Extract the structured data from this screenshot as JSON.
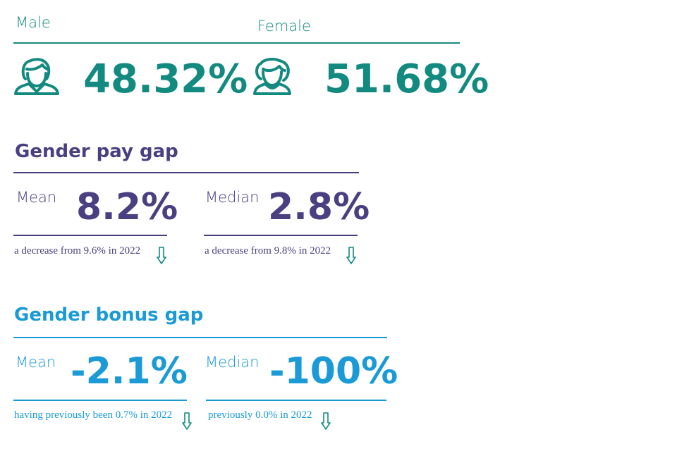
{
  "gender_split": {
    "male_label": "Male",
    "female_label": "Female",
    "male_value": "48.32%",
    "female_value": "51.68%",
    "male_icon": "male-person-icon",
    "female_icon": "female-person-icon"
  },
  "pay_gap": {
    "title": "Gender pay gap",
    "mean_label": "Mean",
    "mean_value": "8.2%",
    "mean_note": "a decrease from 9.6% in 2022",
    "median_label": "Median",
    "median_value": "2.8%",
    "median_note": "a decrease from 9.8% in 2022"
  },
  "bonus_gap": {
    "title": "Gender bonus gap",
    "mean_label": "Mean",
    "mean_value": "-2.1%",
    "mean_note": "having previously been 0.7% in 2022",
    "median_label": "Median",
    "median_value": "-100%",
    "median_note": "previously 0.0% in 2022"
  },
  "colors": {
    "teal": "#138a80",
    "purple": "#4a3f80",
    "blue": "#1a9ad6"
  }
}
